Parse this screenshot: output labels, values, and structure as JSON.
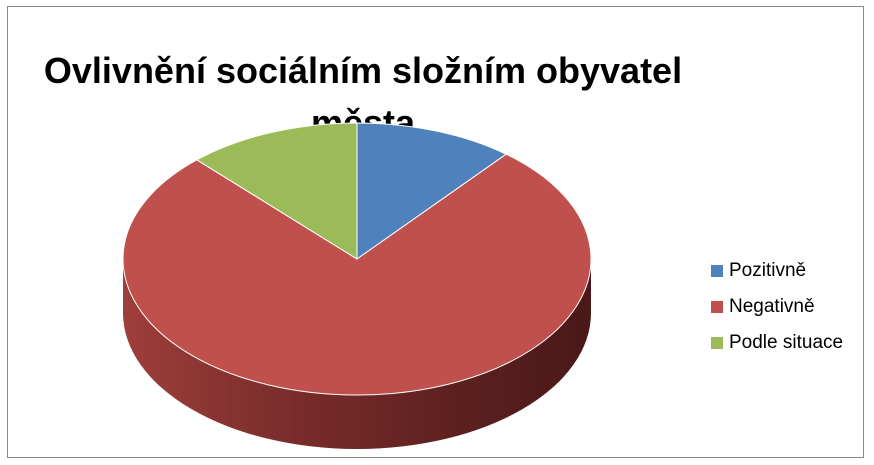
{
  "chart_data": {
    "type": "pie",
    "title": "Ovlivnění sociálním složním obyvatel města",
    "categories": [
      "Pozitivně",
      "Negativně",
      "Podle situace"
    ],
    "values": [
      11,
      77,
      12
    ],
    "colors": [
      "#4F81BD",
      "#C0504D",
      "#9BBB59"
    ],
    "legend_position": "right",
    "three_d": true
  }
}
